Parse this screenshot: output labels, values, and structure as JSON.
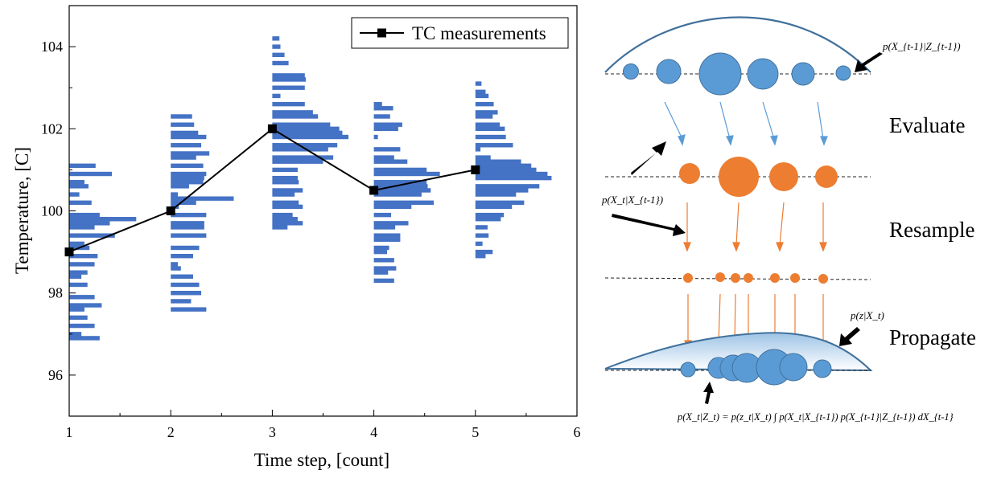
{
  "chart_data": {
    "type": "line",
    "xlabel": "Time step, [count]",
    "ylabel": "Temperature, [C]",
    "xlim": [
      1,
      6
    ],
    "ylim": [
      95,
      105
    ],
    "x_ticks": [
      1,
      2,
      3,
      4,
      5,
      6
    ],
    "y_ticks": [
      96,
      98,
      100,
      102,
      104
    ],
    "grid": false,
    "legend_position": "top-right",
    "series": [
      {
        "name": "TC measurements",
        "x": [
          1,
          2,
          3,
          4,
          5
        ],
        "y": [
          99,
          100,
          102,
          100.5,
          101
        ],
        "color": "#000000",
        "marker": "square"
      }
    ],
    "particle_histograms": [
      {
        "x": 1,
        "color": "#4472c4",
        "bins": [
          [
            101.1,
            0.26
          ],
          [
            100.9,
            0.42
          ],
          [
            100.7,
            0.15
          ],
          [
            100.6,
            0.19
          ],
          [
            100.4,
            0.1
          ],
          [
            100.2,
            0.22
          ],
          [
            99.9,
            0.3
          ],
          [
            99.8,
            0.66
          ],
          [
            99.7,
            0.4
          ],
          [
            99.6,
            0.25
          ],
          [
            99.4,
            0.45
          ],
          [
            99.2,
            0.15
          ],
          [
            99.1,
            0.2
          ],
          [
            98.9,
            0.28
          ],
          [
            98.7,
            0.25
          ],
          [
            98.5,
            0.18
          ],
          [
            98.4,
            0.12
          ],
          [
            98.2,
            0.18
          ],
          [
            97.9,
            0.25
          ],
          [
            97.7,
            0.32
          ],
          [
            97.6,
            0.15
          ],
          [
            97.4,
            0.18
          ],
          [
            97.2,
            0.25
          ],
          [
            97.0,
            0.12
          ],
          [
            96.9,
            0.3
          ]
        ]
      },
      {
        "x": 2,
        "color": "#4472c4",
        "bins": [
          [
            102.3,
            0.21
          ],
          [
            102.1,
            0.23
          ],
          [
            101.9,
            0.27
          ],
          [
            101.8,
            0.35
          ],
          [
            101.6,
            0.3
          ],
          [
            101.4,
            0.38
          ],
          [
            101.3,
            0.25
          ],
          [
            101.1,
            0.32
          ],
          [
            100.9,
            0.35
          ],
          [
            100.8,
            0.33
          ],
          [
            100.7,
            0.32
          ],
          [
            100.6,
            0.18
          ],
          [
            100.4,
            0.07
          ],
          [
            100.3,
            0.62
          ],
          [
            100.2,
            0.25
          ],
          [
            100.1,
            0.08
          ],
          [
            99.9,
            0.35
          ],
          [
            99.7,
            0.33
          ],
          [
            99.6,
            0.33
          ],
          [
            99.4,
            0.35
          ],
          [
            99.1,
            0.28
          ],
          [
            98.9,
            0.22
          ],
          [
            98.7,
            0.07
          ],
          [
            98.6,
            0.1
          ],
          [
            98.4,
            0.22
          ],
          [
            98.2,
            0.28
          ],
          [
            98.0,
            0.3
          ],
          [
            97.8,
            0.2
          ],
          [
            97.6,
            0.35
          ]
        ]
      },
      {
        "x": 3,
        "color": "#4472c4",
        "bins": [
          [
            104.2,
            0.07
          ],
          [
            104.0,
            0.08
          ],
          [
            103.8,
            0.12
          ],
          [
            103.6,
            0.16
          ],
          [
            103.3,
            0.32
          ],
          [
            103.2,
            0.33
          ],
          [
            103.0,
            0.32
          ],
          [
            102.8,
            0.08
          ],
          [
            102.6,
            0.32
          ],
          [
            102.4,
            0.4
          ],
          [
            102.3,
            0.45
          ],
          [
            102.1,
            0.57
          ],
          [
            102.0,
            0.66
          ],
          [
            101.9,
            0.69
          ],
          [
            101.8,
            0.75
          ],
          [
            101.6,
            0.64
          ],
          [
            101.5,
            0.55
          ],
          [
            101.3,
            0.6
          ],
          [
            101.2,
            0.5
          ],
          [
            101.0,
            0.25
          ],
          [
            100.8,
            0.25
          ],
          [
            100.7,
            0.26
          ],
          [
            100.5,
            0.3
          ],
          [
            100.4,
            0.22
          ],
          [
            100.2,
            0.26
          ],
          [
            100.1,
            0.3
          ],
          [
            99.9,
            0.2
          ],
          [
            99.8,
            0.25
          ],
          [
            99.7,
            0.3
          ],
          [
            99.6,
            0.15
          ]
        ]
      },
      {
        "x": 4,
        "color": "#4472c4",
        "bins": [
          [
            102.6,
            0.08
          ],
          [
            102.5,
            0.19
          ],
          [
            102.3,
            0.16
          ],
          [
            102.1,
            0.28
          ],
          [
            102.0,
            0.24
          ],
          [
            101.8,
            0.04
          ],
          [
            101.5,
            0.26
          ],
          [
            101.3,
            0.2
          ],
          [
            101.2,
            0.33
          ],
          [
            101.0,
            0.52
          ],
          [
            100.9,
            0.65
          ],
          [
            100.7,
            0.52
          ],
          [
            100.6,
            0.53
          ],
          [
            100.5,
            0.56
          ],
          [
            100.4,
            0.47
          ],
          [
            100.2,
            0.59
          ],
          [
            100.1,
            0.37
          ],
          [
            99.9,
            0.17
          ],
          [
            99.7,
            0.34
          ],
          [
            99.6,
            0.21
          ],
          [
            99.4,
            0.26
          ],
          [
            99.3,
            0.26
          ],
          [
            99.1,
            0.15
          ],
          [
            99.0,
            0.13
          ],
          [
            98.8,
            0.2
          ],
          [
            98.6,
            0.22
          ],
          [
            98.5,
            0.14
          ],
          [
            98.3,
            0.2
          ]
        ]
      },
      {
        "x": 5,
        "color": "#4472c4",
        "bins": [
          [
            103.1,
            0.06
          ],
          [
            102.9,
            0.1
          ],
          [
            102.8,
            0.13
          ],
          [
            102.6,
            0.18
          ],
          [
            102.4,
            0.22
          ],
          [
            102.3,
            0.17
          ],
          [
            102.1,
            0.24
          ],
          [
            102.0,
            0.29
          ],
          [
            101.8,
            0.3
          ],
          [
            101.6,
            0.37
          ],
          [
            101.5,
            0.05
          ],
          [
            101.3,
            0.15
          ],
          [
            101.2,
            0.45
          ],
          [
            101.1,
            0.55
          ],
          [
            101.0,
            0.6
          ],
          [
            100.9,
            0.71
          ],
          [
            100.8,
            0.75
          ],
          [
            100.6,
            0.63
          ],
          [
            100.5,
            0.52
          ],
          [
            100.4,
            0.4
          ],
          [
            100.2,
            0.48
          ],
          [
            100.1,
            0.36
          ],
          [
            99.9,
            0.28
          ],
          [
            99.8,
            0.25
          ],
          [
            99.6,
            0.12
          ],
          [
            99.4,
            0.13
          ],
          [
            99.2,
            0.07
          ],
          [
            99.0,
            0.17
          ],
          [
            98.9,
            0.1
          ]
        ]
      }
    ]
  },
  "diagram": {
    "stage_labels": {
      "evaluate": "Evaluate",
      "resample": "Resample",
      "propagate": "Propagate"
    },
    "colors": {
      "prior_particle": "#5b9bd5",
      "resampled_particle": "#ed7d31",
      "arrow_blue": "#5b9bd5",
      "arrow_orange": "#ed7d31",
      "curve": "#41719c"
    },
    "formulas": {
      "prior_pdf": "p(X_{t-1}|Z_{t-1})",
      "transition_pdf": "p(X_t|X_{t-1})",
      "measurement_pdf": "p(z|X_t)",
      "bayes_update": "p(X_t|Z_t) = p(z_t|X_t) ∫ p(X_t|X_{t-1}) p(X_{t-1}|Z_{t-1}) dX_{t-1}"
    }
  }
}
